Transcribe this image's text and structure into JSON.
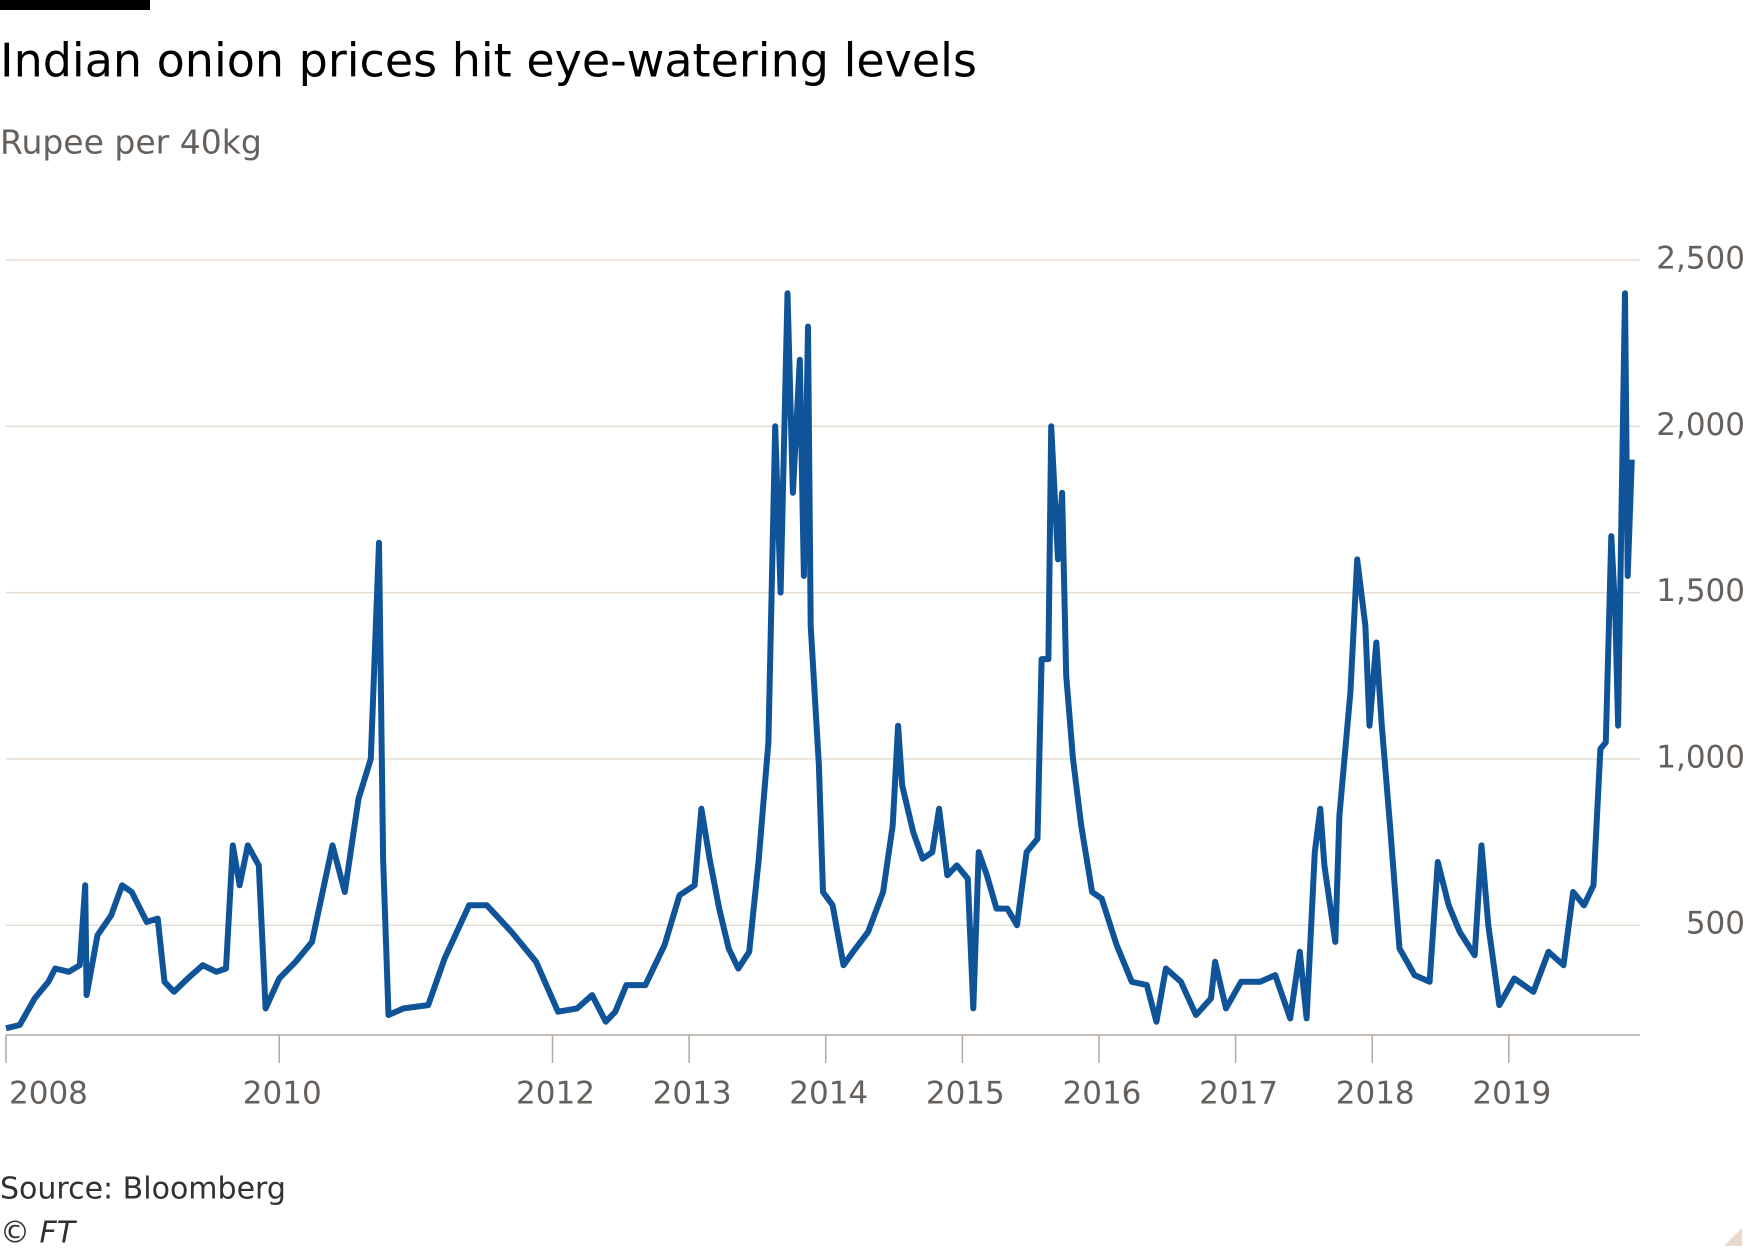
{
  "chart_data": {
    "type": "line",
    "title": "Indian onion prices hit eye-watering levels",
    "subtitle": "Rupee per 40kg",
    "source": "Source: Bloomberg",
    "credit": "© FT",
    "color": "#0f5499",
    "grid": true,
    "xlim": [
      2008,
      2019.96
    ],
    "xticks": [
      2008,
      2010,
      2012,
      2013,
      2014,
      2015,
      2016,
      2017,
      2018,
      2019
    ],
    "ylim": [
      170,
      2500
    ],
    "yticks": [
      500,
      {
        "value": 1000,
        "label": "1,000"
      },
      {
        "value": 1500,
        "label": "1,500"
      },
      {
        "value": 2000,
        "label": "2,000"
      },
      {
        "value": 2500,
        "label": "2,500"
      }
    ],
    "x": [
      2008.0,
      2008.1,
      2008.21,
      2008.31,
      2008.36,
      2008.46,
      2008.54,
      2008.58,
      2008.59,
      2008.67,
      2008.77,
      2008.85,
      2008.92,
      2009.03,
      2009.11,
      2009.16,
      2009.23,
      2009.33,
      2009.44,
      2009.54,
      2009.61,
      2009.66,
      2009.71,
      2009.77,
      2009.85,
      2009.9,
      2010.0,
      2010.12,
      2010.24,
      2010.39,
      2010.48,
      2010.58,
      2010.67,
      2010.73,
      2010.76,
      2010.8,
      2010.91,
      2011.09,
      2011.21,
      2011.39,
      2011.52,
      2011.7,
      2011.88,
      2012.04,
      2012.18,
      2012.29,
      2012.39,
      2012.46,
      2012.54,
      2012.68,
      2012.82,
      2012.93,
      2013.04,
      2013.09,
      2013.15,
      2013.22,
      2013.29,
      2013.36,
      2013.44,
      2013.51,
      2013.58,
      2013.63,
      2013.67,
      2013.72,
      2013.76,
      2013.81,
      2013.84,
      2013.87,
      2013.89,
      2013.95,
      2013.98,
      2014.05,
      2014.13,
      2014.2,
      2014.31,
      2014.42,
      2014.49,
      2014.53,
      2014.56,
      2014.64,
      2014.71,
      2014.78,
      2014.83,
      2014.89,
      2014.96,
      2015.04,
      2015.08,
      2015.12,
      2015.18,
      2015.25,
      2015.33,
      2015.4,
      2015.47,
      2015.55,
      2015.58,
      2015.63,
      2015.65,
      2015.7,
      2015.73,
      2015.76,
      2015.81,
      2015.87,
      2015.95,
      2016.02,
      2016.13,
      2016.24,
      2016.35,
      2016.42,
      2016.49,
      2016.6,
      2016.71,
      2016.82,
      2016.85,
      2016.93,
      2017.04,
      2017.18,
      2017.29,
      2017.4,
      2017.47,
      2017.52,
      2017.58,
      2017.62,
      2017.65,
      2017.73,
      2017.76,
      2017.84,
      2017.89,
      2017.95,
      2017.98,
      2018.03,
      2018.07,
      2018.13,
      2018.2,
      2018.31,
      2018.42,
      2018.48,
      2018.56,
      2018.64,
      2018.75,
      2018.8,
      2018.85,
      2018.93,
      2019.04,
      2019.18,
      2019.29,
      2019.4,
      2019.47,
      2019.55,
      2019.62,
      2019.67,
      2019.71,
      2019.75,
      2019.78,
      2019.8,
      2019.85,
      2019.87,
      2019.9
    ],
    "values": [
      190,
      200,
      280,
      330,
      370,
      360,
      380,
      620,
      290,
      470,
      530,
      620,
      600,
      510,
      520,
      330,
      300,
      340,
      380,
      360,
      370,
      740,
      620,
      740,
      680,
      250,
      340,
      390,
      450,
      740,
      600,
      880,
      1000,
      1650,
      700,
      230,
      250,
      260,
      400,
      560,
      560,
      480,
      390,
      240,
      250,
      290,
      210,
      240,
      320,
      320,
      440,
      590,
      620,
      850,
      700,
      550,
      430,
      370,
      420,
      700,
      1050,
      2000,
      1500,
      2400,
      1800,
      2200,
      1550,
      2300,
      1400,
      980,
      600,
      560,
      380,
      420,
      480,
      600,
      800,
      1100,
      920,
      780,
      700,
      720,
      850,
      650,
      680,
      640,
      250,
      720,
      650,
      550,
      550,
      500,
      720,
      760,
      1300,
      1300,
      2000,
      1600,
      1800,
      1250,
      1000,
      800,
      600,
      580,
      440,
      330,
      320,
      210,
      370,
      330,
      230,
      280,
      390,
      250,
      330,
      330,
      350,
      220,
      420,
      220,
      720,
      850,
      680,
      450,
      830,
      1200,
      1600,
      1400,
      1100,
      1350,
      1100,
      800,
      430,
      350,
      330,
      690,
      560,
      480,
      410,
      740,
      500,
      260,
      340,
      300,
      420,
      380,
      600,
      560,
      620,
      1030,
      1050,
      1670,
      1430,
      1100,
      2400,
      1550,
      1900
    ]
  }
}
